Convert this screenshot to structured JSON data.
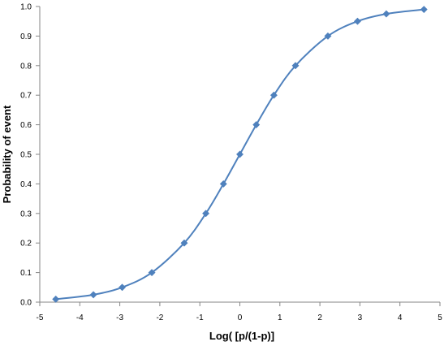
{
  "chart_data": {
    "type": "line",
    "title": "",
    "xlabel": "Log( [p/(1-p)]",
    "ylabel": "Probability of event",
    "xlim": [
      -5,
      5
    ],
    "ylim": [
      0,
      1
    ],
    "x_ticks": [
      -5,
      -4,
      -3,
      -2,
      -1,
      0,
      1,
      2,
      3,
      4,
      5
    ],
    "x_tick_labels": [
      "-5",
      "-4",
      "-3",
      "-2",
      "-1",
      "0",
      "1",
      "2",
      "3",
      "4",
      "5"
    ],
    "y_ticks": [
      0,
      0.1,
      0.2,
      0.3,
      0.4,
      0.5,
      0.6,
      0.7,
      0.8,
      0.9,
      1.0
    ],
    "y_tick_labels": [
      "0.0",
      "0.1",
      "0.2",
      "0.3",
      "0.4",
      "0.5",
      "0.6",
      "0.7",
      "0.8",
      "0.9",
      "1.0"
    ],
    "grid": false,
    "legend": "none",
    "smooth": true,
    "series": [
      {
        "color": "#4f81bd",
        "marker": "diamond",
        "x": [
          -4.6,
          -3.66,
          -2.94,
          -2.2,
          -1.39,
          -0.85,
          -0.41,
          0,
          0.41,
          0.85,
          1.39,
          2.2,
          2.94,
          3.66,
          4.6
        ],
        "y": [
          0.01,
          0.025,
          0.05,
          0.1,
          0.2,
          0.3,
          0.4,
          0.5,
          0.6,
          0.7,
          0.8,
          0.9,
          0.95,
          0.975,
          0.99
        ]
      }
    ]
  }
}
